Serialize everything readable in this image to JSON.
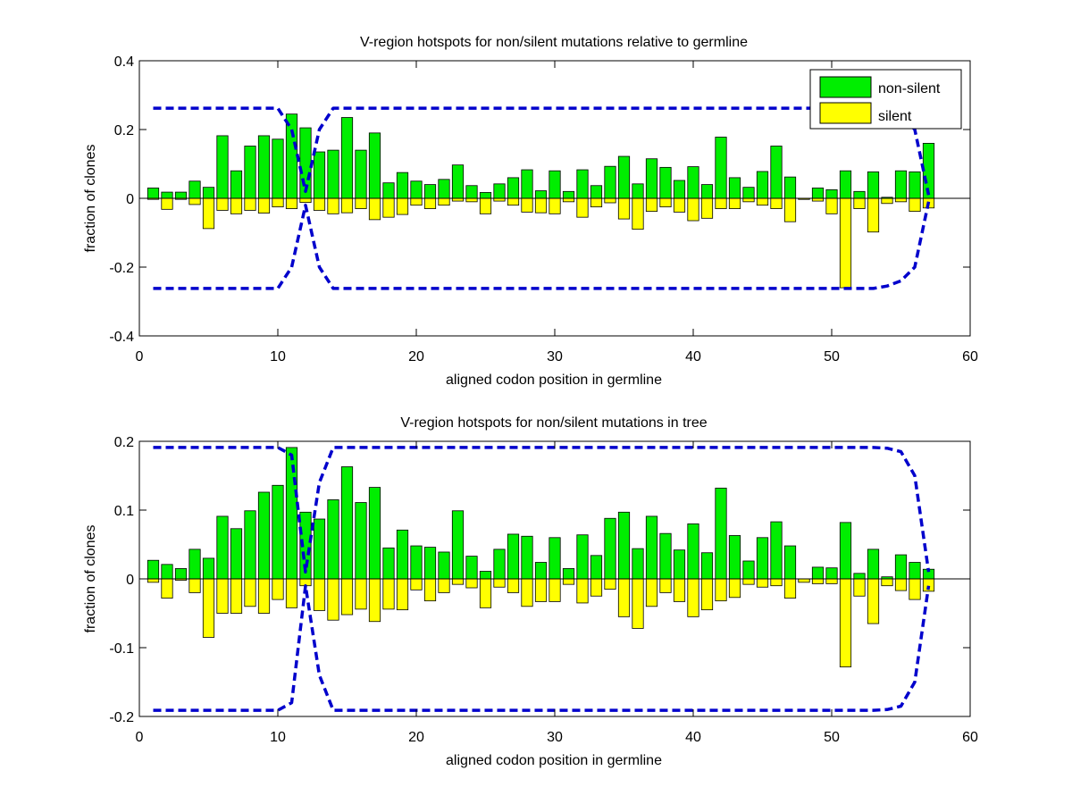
{
  "chart_data": [
    {
      "type": "bar",
      "title": "V-region hotspots for non/silent mutations relative to germline",
      "xlabel": "aligned codon position in germline",
      "ylabel": "fraction of clones",
      "xlim": [
        0,
        60
      ],
      "ylim": [
        -0.4,
        0.4
      ],
      "xticks": [
        0,
        10,
        20,
        30,
        40,
        50,
        60
      ],
      "yticks": [
        -0.4,
        -0.2,
        0,
        0.2,
        0.4
      ],
      "ytick_labels": [
        "-0.4",
        "-0.2",
        "0",
        "0.2",
        "0.4"
      ],
      "legend": {
        "position": "top-right",
        "entries": [
          "non-silent",
          "silent"
        ]
      },
      "x": [
        1,
        2,
        3,
        4,
        5,
        6,
        7,
        8,
        9,
        10,
        11,
        12,
        13,
        14,
        15,
        16,
        17,
        18,
        19,
        20,
        21,
        22,
        23,
        24,
        25,
        26,
        27,
        28,
        29,
        30,
        31,
        32,
        33,
        34,
        35,
        36,
        37,
        38,
        39,
        40,
        41,
        42,
        43,
        44,
        45,
        46,
        47,
        48,
        49,
        50,
        51,
        52,
        53,
        54,
        55,
        56,
        57
      ],
      "series": [
        {
          "name": "non-silent",
          "color": "#00ee00",
          "values": [
            0.03,
            0.018,
            0.018,
            0.05,
            0.032,
            0.182,
            0.08,
            0.152,
            0.182,
            0.172,
            0.245,
            0.205,
            0.135,
            0.14,
            0.235,
            0.14,
            0.19,
            0.045,
            0.075,
            0.05,
            0.04,
            0.055,
            0.097,
            0.037,
            0.017,
            0.042,
            0.06,
            0.083,
            0.022,
            0.08,
            0.02,
            0.083,
            0.037,
            0.093,
            0.122,
            0.042,
            0.115,
            0.09,
            0.052,
            0.092,
            0.04,
            0.178,
            0.06,
            0.032,
            0.078,
            0.152,
            0.062,
            -0.003,
            0.03,
            0.025,
            0.08,
            0.02,
            0.077,
            0.003,
            0.08,
            0.077,
            0.16
          ]
        },
        {
          "name": "silent",
          "color": "#ffff00",
          "values": [
            -0.003,
            -0.032,
            -0.003,
            -0.018,
            -0.088,
            -0.035,
            -0.045,
            -0.035,
            -0.043,
            -0.025,
            -0.03,
            -0.012,
            -0.035,
            -0.045,
            -0.042,
            -0.03,
            -0.062,
            -0.055,
            -0.047,
            -0.02,
            -0.03,
            -0.02,
            -0.008,
            -0.01,
            -0.045,
            -0.008,
            -0.02,
            -0.04,
            -0.042,
            -0.045,
            -0.01,
            -0.055,
            -0.025,
            -0.013,
            -0.06,
            -0.09,
            -0.038,
            -0.025,
            -0.04,
            -0.065,
            -0.058,
            -0.03,
            -0.03,
            -0.01,
            -0.02,
            -0.03,
            -0.068,
            -0.003,
            -0.008,
            -0.045,
            -0.26,
            -0.03,
            -0.098,
            -0.015,
            -0.01,
            -0.038,
            -0.028
          ]
        }
      ],
      "envelope": {
        "color": "#0000cc",
        "x": [
          1,
          10,
          11,
          12,
          13,
          14,
          53,
          54,
          55,
          56,
          57
        ],
        "upper": [
          0.262,
          0.262,
          0.2,
          0.02,
          0.2,
          0.262,
          0.262,
          0.255,
          0.24,
          0.2,
          0.01
        ],
        "lower": [
          -0.262,
          -0.262,
          -0.2,
          -0.02,
          -0.2,
          -0.262,
          -0.262,
          -0.255,
          -0.24,
          -0.2,
          -0.01
        ]
      }
    },
    {
      "type": "bar",
      "title": "V-region hotspots for non/silent mutations in tree",
      "xlabel": "aligned codon position in germline",
      "ylabel": "fraction of clones",
      "xlim": [
        0,
        60
      ],
      "ylim": [
        -0.2,
        0.2
      ],
      "xticks": [
        0,
        10,
        20,
        30,
        40,
        50,
        60
      ],
      "yticks": [
        -0.2,
        -0.1,
        0,
        0.1,
        0.2
      ],
      "ytick_labels": [
        "-0.2",
        "-0.1",
        "0",
        "0.1",
        "0.2"
      ],
      "x": [
        1,
        2,
        3,
        4,
        5,
        6,
        7,
        8,
        9,
        10,
        11,
        12,
        13,
        14,
        15,
        16,
        17,
        18,
        19,
        20,
        21,
        22,
        23,
        24,
        25,
        26,
        27,
        28,
        29,
        30,
        31,
        32,
        33,
        34,
        35,
        36,
        37,
        38,
        39,
        40,
        41,
        42,
        43,
        44,
        45,
        46,
        47,
        48,
        49,
        50,
        51,
        52,
        53,
        54,
        55,
        56,
        57
      ],
      "series": [
        {
          "name": "non-silent",
          "color": "#00ee00",
          "values": [
            0.027,
            0.021,
            0.015,
            0.043,
            0.03,
            0.091,
            0.073,
            0.099,
            0.126,
            0.136,
            0.191,
            0.097,
            0.087,
            0.115,
            0.163,
            0.111,
            0.133,
            0.045,
            0.071,
            0.048,
            0.046,
            0.039,
            0.099,
            0.033,
            0.011,
            0.043,
            0.065,
            0.062,
            0.024,
            0.06,
            0.015,
            0.064,
            0.034,
            0.088,
            0.097,
            0.044,
            0.091,
            0.066,
            0.042,
            0.08,
            0.038,
            0.132,
            0.063,
            0.026,
            0.06,
            0.083,
            0.048,
            -0.003,
            0.017,
            0.016,
            0.082,
            0.008,
            0.043,
            0.003,
            0.035,
            0.024,
            0.014
          ]
        },
        {
          "name": "silent",
          "color": "#ffff00",
          "values": [
            -0.005,
            -0.028,
            -0.002,
            -0.02,
            -0.085,
            -0.05,
            -0.05,
            -0.04,
            -0.05,
            -0.03,
            -0.042,
            -0.01,
            -0.046,
            -0.06,
            -0.052,
            -0.044,
            -0.062,
            -0.044,
            -0.045,
            -0.016,
            -0.032,
            -0.02,
            -0.008,
            -0.013,
            -0.042,
            -0.012,
            -0.02,
            -0.04,
            -0.033,
            -0.033,
            -0.008,
            -0.035,
            -0.025,
            -0.015,
            -0.055,
            -0.072,
            -0.04,
            -0.02,
            -0.033,
            -0.055,
            -0.045,
            -0.032,
            -0.027,
            -0.008,
            -0.012,
            -0.01,
            -0.028,
            -0.005,
            -0.007,
            -0.007,
            -0.128,
            -0.025,
            -0.065,
            -0.01,
            -0.017,
            -0.03,
            -0.018
          ]
        }
      ],
      "envelope": {
        "color": "#0000cc",
        "x": [
          1,
          10,
          11,
          12,
          13,
          14,
          53,
          54,
          55,
          56,
          57
        ],
        "upper": [
          0.191,
          0.191,
          0.18,
          0.01,
          0.14,
          0.191,
          0.191,
          0.19,
          0.185,
          0.15,
          0.01
        ],
        "lower": [
          -0.191,
          -0.191,
          -0.18,
          -0.01,
          -0.14,
          -0.191,
          -0.191,
          -0.19,
          -0.185,
          -0.15,
          -0.01
        ]
      }
    }
  ]
}
